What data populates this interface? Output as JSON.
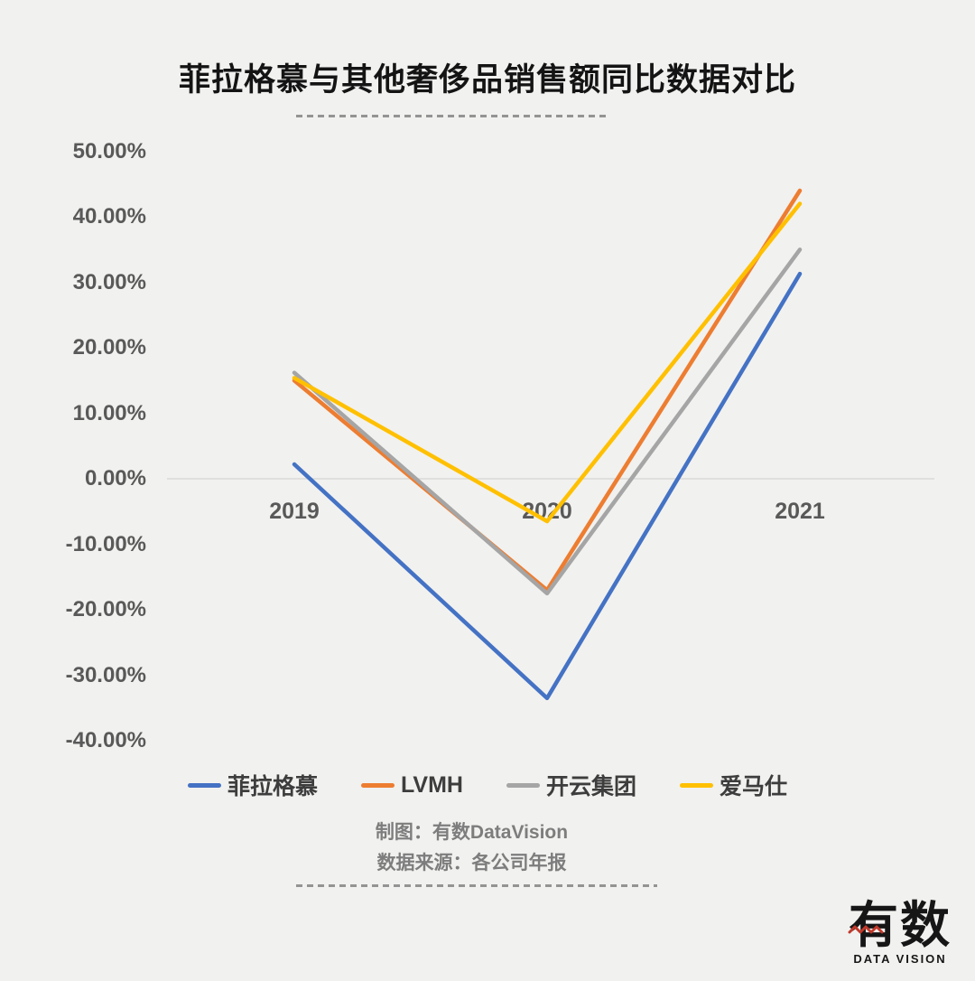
{
  "header": {
    "title": "菲拉格慕与其他奢侈品销售额同比数据对比"
  },
  "chart_data": {
    "type": "line",
    "title": "菲拉格慕与其他奢侈品销售额同比数据对比",
    "categories": [
      "2019",
      "2020",
      "2021"
    ],
    "series": [
      {
        "name": "菲拉格慕",
        "color": "#4472C4",
        "values": [
          2.2,
          -33.5,
          31.3
        ]
      },
      {
        "name": "LVMH",
        "color": "#ED7D31",
        "values": [
          15.0,
          -17.0,
          44.0
        ]
      },
      {
        "name": "开云集团",
        "color": "#A5A5A5",
        "values": [
          16.2,
          -17.5,
          35.0
        ]
      },
      {
        "name": "爱马仕",
        "color": "#FFC000",
        "values": [
          15.4,
          -6.5,
          42.0
        ]
      }
    ],
    "y_ticks": [
      {
        "value": 50,
        "label": "50.00%"
      },
      {
        "value": 40,
        "label": "40.00%"
      },
      {
        "value": 30,
        "label": "30.00%"
      },
      {
        "value": 20,
        "label": "20.00%"
      },
      {
        "value": 10,
        "label": "10.00%"
      },
      {
        "value": 0,
        "label": "0.00%"
      },
      {
        "value": -10,
        "label": "-10.00%"
      },
      {
        "value": -20,
        "label": "-20.00%"
      },
      {
        "value": -30,
        "label": "-30.00%"
      },
      {
        "value": -40,
        "label": "-40.00%"
      }
    ],
    "ylim": [
      -40,
      50
    ],
    "xlabel": "",
    "ylabel": "",
    "grid": "zero-line-only",
    "legend_position": "bottom",
    "axis_text_color": "#595959",
    "zero_line_color": "#d9d9d9"
  },
  "footer": {
    "credit": "制图：有数DataVision",
    "source": "数据来源：各公司年报"
  },
  "logo": {
    "name": "有数",
    "subtitle": "DATA VISION",
    "accent_color": "#C0392B"
  }
}
